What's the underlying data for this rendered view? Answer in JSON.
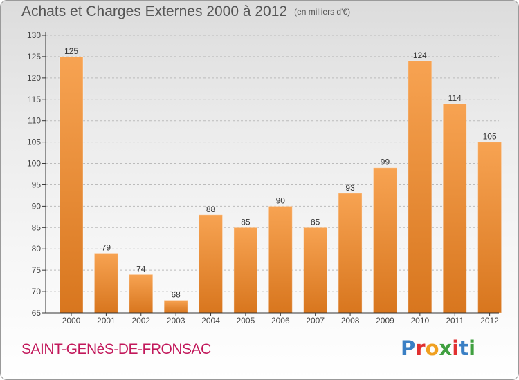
{
  "title": "Achats et Charges Externes 2000 à 2012",
  "unit_note": "(en milliers d'€)",
  "place_name": "SAINT-GENèS-DE-FRONSAC",
  "logo": {
    "text": "Proxiti",
    "colors": [
      "#3a7fc4",
      "#e03030",
      "#f0a020",
      "#40a040",
      "#e03030",
      "#3a7fc4",
      "#40a040"
    ]
  },
  "colors": {
    "bar_top": "#f7a352",
    "bar_bottom": "#d8761e",
    "axis": "#333333",
    "grid": "#bbbbbb"
  },
  "chart_data": {
    "type": "bar",
    "title": "Achats et Charges Externes 2000 à 2012",
    "xlabel": "",
    "ylabel": "",
    "categories": [
      "2000",
      "2001",
      "2002",
      "2003",
      "2004",
      "2005",
      "2006",
      "2007",
      "2008",
      "2009",
      "2010",
      "2011",
      "2012"
    ],
    "values": [
      125,
      79,
      74,
      68,
      88,
      85,
      90,
      85,
      93,
      99,
      124,
      114,
      105
    ],
    "ylim": [
      65,
      130
    ],
    "yticks": [
      65,
      70,
      75,
      80,
      85,
      90,
      95,
      100,
      105,
      110,
      115,
      120,
      125,
      130
    ],
    "grid": true,
    "legend": "none"
  }
}
